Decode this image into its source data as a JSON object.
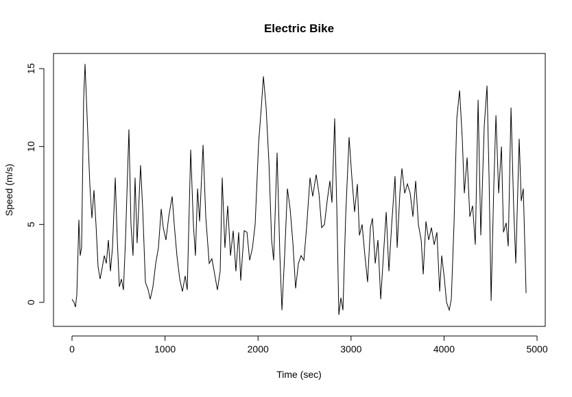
{
  "chart_data": {
    "type": "line",
    "title": "Electric Bike",
    "x_label": "Time (sec)",
    "y_label": "Speed (m/s)",
    "x": [
      0,
      22,
      37,
      52,
      74,
      88,
      103,
      125,
      140,
      162,
      192,
      214,
      236,
      258,
      280,
      302,
      324,
      347,
      369,
      391,
      413,
      435,
      465,
      487,
      509,
      531,
      553,
      575,
      612,
      634,
      656,
      678,
      700,
      737,
      760,
      789,
      819,
      841,
      870,
      900,
      929,
      959,
      981,
      1010,
      1040,
      1077,
      1099,
      1128,
      1158,
      1187,
      1217,
      1239,
      1276,
      1305,
      1327,
      1350,
      1372,
      1409,
      1438,
      1475,
      1504,
      1534,
      1563,
      1593,
      1615,
      1644,
      1674,
      1704,
      1733,
      1762,
      1792,
      1814,
      1851,
      1881,
      1910,
      1940,
      1969,
      2006,
      2035,
      2058,
      2087,
      2117,
      2146,
      2168,
      2205,
      2235,
      2257,
      2286,
      2316,
      2345,
      2375,
      2404,
      2434,
      2463,
      2493,
      2522,
      2559,
      2588,
      2625,
      2655,
      2684,
      2714,
      2743,
      2773,
      2795,
      2824,
      2847,
      2869,
      2891,
      2913,
      2942,
      2979,
      3009,
      3038,
      3068,
      3090,
      3119,
      3149,
      3178,
      3208,
      3230,
      3260,
      3289,
      3319,
      3348,
      3378,
      3407,
      3437,
      3473,
      3496,
      3525,
      3547,
      3577,
      3606,
      3636,
      3665,
      3695,
      3724,
      3754,
      3776,
      3805,
      3835,
      3864,
      3894,
      3923,
      3953,
      3975,
      4004,
      4027,
      4056,
      4078,
      4108,
      4137,
      4167,
      4196,
      4218,
      4248,
      4277,
      4307,
      4336,
      4366,
      4395,
      4432,
      4462,
      4484,
      4506,
      4535,
      4558,
      4587,
      4617,
      4639,
      4668,
      4690,
      4720,
      4749,
      4771,
      4808,
      4830,
      4852,
      4882
    ],
    "series": [
      {
        "name": "Speed",
        "color": "#000000",
        "values": [
          0.2,
          0,
          -0.3,
          0.5,
          5.3,
          3.0,
          3.5,
          13,
          15.3,
          12,
          7.5,
          5.4,
          7.2,
          5,
          2.3,
          1.5,
          2.2,
          3,
          2.5,
          4,
          2,
          3.5,
          8,
          4,
          1,
          1.5,
          0.8,
          4,
          11.1,
          5,
          3,
          8,
          3.8,
          8.8,
          6,
          1.3,
          0.8,
          0.2,
          1,
          2.5,
          3.5,
          6,
          4.8,
          4,
          5.5,
          6.8,
          5,
          3,
          1.5,
          0.7,
          1.7,
          0.8,
          9.8,
          5,
          3,
          7.3,
          5.2,
          10.1,
          5.5,
          2.5,
          2.8,
          1.8,
          0.8,
          2,
          8,
          3.5,
          6.2,
          3,
          4.6,
          2,
          4.5,
          1.4,
          4.6,
          4.5,
          2.7,
          3.5,
          5,
          10.2,
          12.5,
          14.5,
          12.5,
          9,
          4,
          2.7,
          9.6,
          3,
          -0.5,
          3,
          7.3,
          6,
          3.8,
          0.9,
          2.5,
          3,
          2.7,
          4.8,
          8,
          6.8,
          8.2,
          7,
          4.8,
          5,
          6.5,
          7.8,
          6.4,
          11.8,
          6,
          -0.8,
          0.3,
          -0.5,
          5.5,
          10.6,
          8,
          5.8,
          7.6,
          4.3,
          5,
          3,
          1.3,
          4.8,
          5.4,
          2.5,
          4,
          0.2,
          3,
          5.8,
          2,
          5,
          8.1,
          3.5,
          7,
          8.6,
          7,
          7.6,
          7,
          5.5,
          7.8,
          5,
          4,
          1.8,
          5.2,
          4,
          4.8,
          3.7,
          4.5,
          0.7,
          3,
          1.5,
          0,
          -0.5,
          0.2,
          5.2,
          11.8,
          13.6,
          10.5,
          7,
          9.3,
          5.5,
          6.2,
          3.7,
          13,
          4.3,
          11.3,
          13.9,
          8,
          0.1,
          7.5,
          12,
          7,
          10,
          4.5,
          5.1,
          3.6,
          12.5,
          6,
          2.5,
          10.5,
          6.5,
          7.3,
          0.6
        ]
      }
    ],
    "xlim": [
      -199,
      5088
    ],
    "ylim": [
      -1.54,
      15.97
    ],
    "xticks": [
      0,
      1000,
      2000,
      3000,
      4000,
      5000
    ],
    "yticks": [
      0,
      5,
      10,
      15
    ]
  }
}
